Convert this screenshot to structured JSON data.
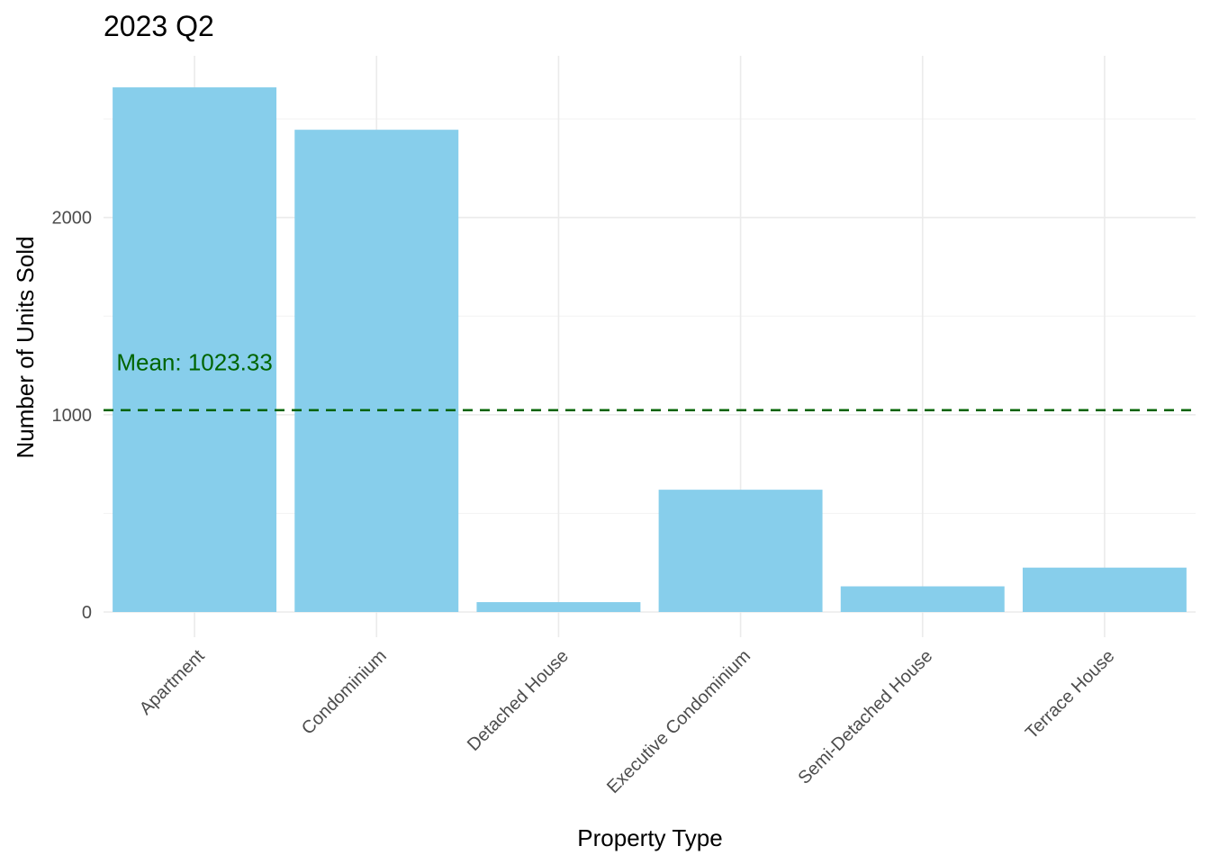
{
  "chart_data": {
    "type": "bar",
    "title": "2023 Q2",
    "xlabel": "Property Type",
    "ylabel": "Number of Units Sold",
    "categories": [
      "Apartment",
      "Condominium",
      "Detached House",
      "Executive Condominium",
      "Semi-Detached House",
      "Terrace House"
    ],
    "values": [
      2660,
      2445,
      50,
      620,
      130,
      225
    ],
    "ylim": [
      0,
      2820
    ],
    "y_ticks": [
      0,
      1000,
      2000
    ],
    "y_minor_ticks": [
      500,
      1500,
      2500
    ],
    "mean": {
      "value": 1023.33,
      "label": "Mean: 1023.33",
      "color": "#006400",
      "style": "dashed"
    },
    "bar_color": "#87CEEB",
    "grid": true,
    "legend": "none"
  }
}
